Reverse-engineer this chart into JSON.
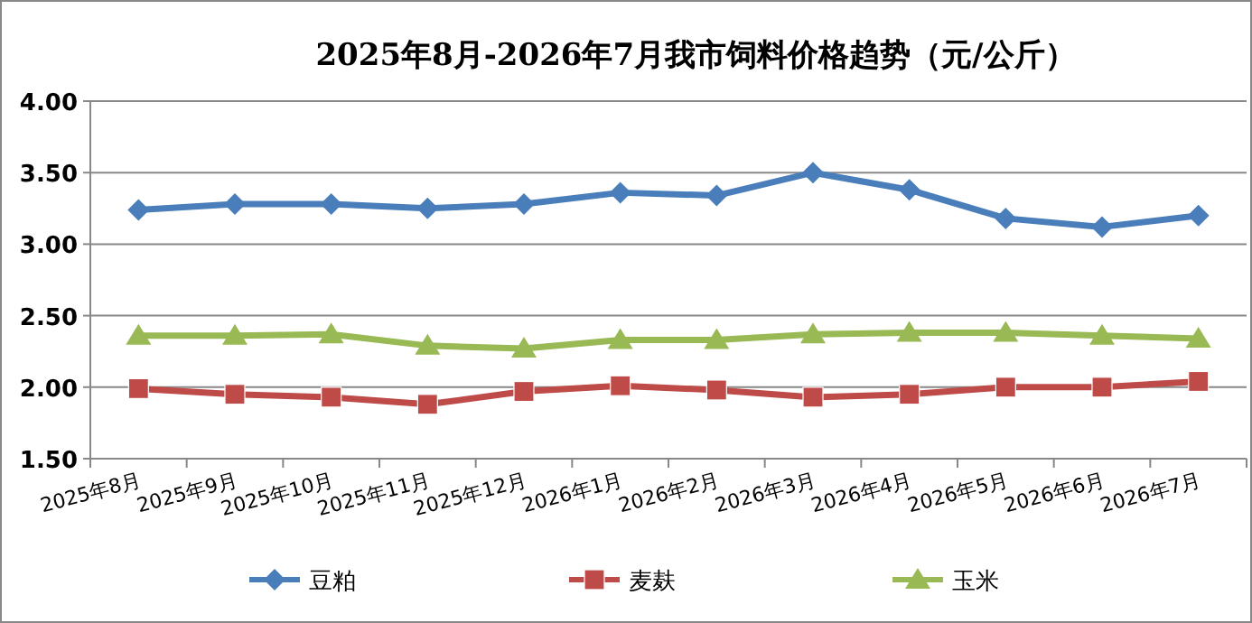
{
  "chart_data": {
    "type": "line",
    "title": "2025年8月-2026年7月我市饲料价格趋势（元/公斤）",
    "categories": [
      "2025年8月",
      "2025年9月",
      "2025年10月",
      "2025年11月",
      "2025年12月",
      "2026年1月",
      "2026年2月",
      "2026年3月",
      "2026年4月",
      "2026年5月",
      "2026年6月",
      "2026年7月"
    ],
    "series": [
      {
        "name": "豆粕",
        "color": "#4a7ebb",
        "marker": "diamond",
        "values": [
          3.24,
          3.28,
          3.28,
          3.25,
          3.28,
          3.36,
          3.34,
          3.5,
          3.38,
          3.18,
          3.12,
          3.2
        ]
      },
      {
        "name": "麦麸",
        "color": "#be4b48",
        "marker": "square",
        "values": [
          1.99,
          1.95,
          1.93,
          1.88,
          1.97,
          2.01,
          1.98,
          1.93,
          1.95,
          2.0,
          2.0,
          2.04
        ]
      },
      {
        "name": "玉米",
        "color": "#98b954",
        "marker": "triangle",
        "values": [
          2.36,
          2.36,
          2.37,
          2.29,
          2.27,
          2.33,
          2.33,
          2.37,
          2.38,
          2.38,
          2.36,
          2.34
        ]
      }
    ],
    "ylim": [
      1.5,
      4.0
    ],
    "yticks": [
      {
        "value": 1.5,
        "label": "1.50"
      },
      {
        "value": 2.0,
        "label": "2.00"
      },
      {
        "value": 2.5,
        "label": "2.50"
      },
      {
        "value": 3.0,
        "label": "3.00"
      },
      {
        "value": 3.5,
        "label": "3.50"
      },
      {
        "value": 4.0,
        "label": "4.00"
      }
    ],
    "grid": "y",
    "legend": "bottom",
    "line_style": "solid"
  }
}
